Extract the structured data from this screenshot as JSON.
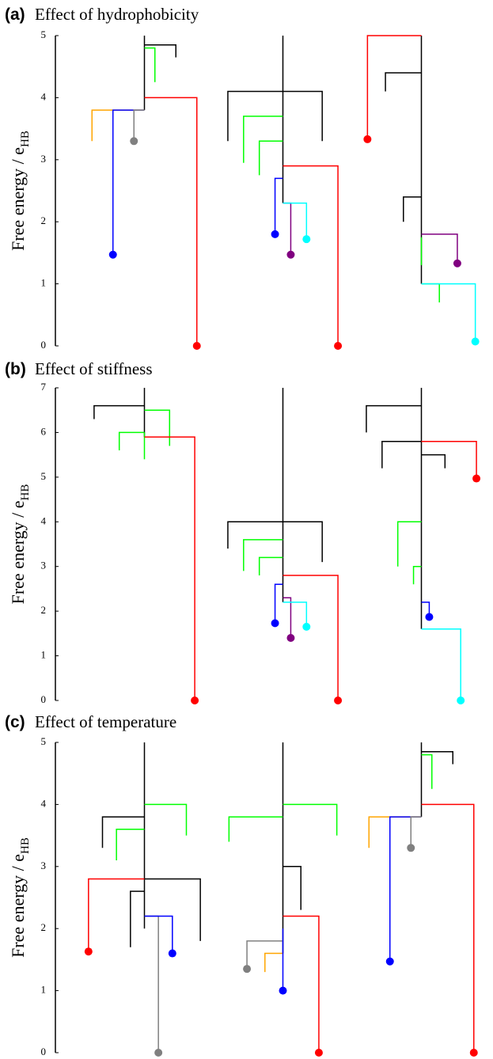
{
  "chart_data": [
    {
      "type": "dendrogram",
      "label": "(a)",
      "title": "Effect of hydrophobicity",
      "ylabel": "Free energy / e",
      "ylabel_sub": "HB",
      "ylim": [
        0,
        5
      ],
      "yticks": [
        0,
        1,
        2,
        3,
        4,
        5
      ],
      "graphs": [
        {
          "leaves": [
            {
              "color": "#ffa500",
              "energy": 3.3,
              "merge": 3.8,
              "dot": false
            },
            {
              "color": "#0000ff",
              "energy": 1.47,
              "merge": 3.8,
              "dot": true
            },
            {
              "color": "#808080",
              "energy": 3.3,
              "merge": 3.8,
              "dot": true
            },
            {
              "color": "#00ff00",
              "energy": 4.25,
              "merge": 4.8,
              "dot": false
            },
            {
              "color": "#000000",
              "energy": 4.65,
              "merge": 4.85,
              "dot": false
            },
            {
              "color": "#ff0000",
              "energy": 0,
              "merge": 4.0,
              "dot": true
            }
          ]
        },
        {
          "leaves": [
            {
              "color": "#000000",
              "energy": 3.3,
              "merge": 4.1,
              "dot": false
            },
            {
              "color": "#00ff00",
              "energy": 2.95,
              "merge": 3.7,
              "dot": false
            },
            {
              "color": "#00ff00",
              "energy": 2.75,
              "merge": 3.3,
              "dot": false
            },
            {
              "color": "#0000ff",
              "energy": 1.8,
              "merge": 2.7,
              "dot": true
            },
            {
              "color": "#800080",
              "energy": 1.47,
              "merge": 2.3,
              "dot": true
            },
            {
              "color": "#00ffff",
              "energy": 1.72,
              "merge": 2.3,
              "dot": true
            },
            {
              "color": "#000000",
              "energy": 3.3,
              "merge": 4.1,
              "dot": false
            },
            {
              "color": "#ff0000",
              "energy": 0,
              "merge": 2.9,
              "dot": true
            }
          ]
        },
        {
          "leaves": [
            {
              "color": "#ff0000",
              "energy": 3.33,
              "merge": 5.0,
              "dot": true
            },
            {
              "color": "#000000",
              "energy": 4.1,
              "merge": 4.4,
              "dot": false
            },
            {
              "color": "#000000",
              "energy": 2.0,
              "merge": 2.4,
              "dot": false
            },
            {
              "color": "#00ff00",
              "energy": 1.3,
              "merge": 1.75,
              "dot": false
            },
            {
              "color": "#00ff00",
              "energy": 0.7,
              "merge": 1.0,
              "dot": false
            },
            {
              "color": "#800080",
              "energy": 1.33,
              "merge": 1.8,
              "dot": true
            },
            {
              "color": "#00ffff",
              "energy": 0.07,
              "merge": 1.0,
              "dot": true
            }
          ]
        }
      ]
    },
    {
      "type": "dendrogram",
      "label": "(b)",
      "title": "Effect of stiffness",
      "ylabel": "Free energy / e",
      "ylabel_sub": "HB",
      "ylim": [
        0,
        7
      ],
      "yticks": [
        0,
        1,
        2,
        3,
        4,
        5,
        6,
        7
      ],
      "graphs": [
        {
          "leaves": [
            {
              "color": "#000000",
              "energy": 6.3,
              "merge": 6.6,
              "dot": false
            },
            {
              "color": "#00ff00",
              "energy": 5.6,
              "merge": 6.0,
              "dot": false
            },
            {
              "color": "#00ff00",
              "energy": 5.4,
              "merge": 6.0,
              "dot": false
            },
            {
              "color": "#00ff00",
              "energy": 5.7,
              "merge": 6.5,
              "dot": false
            },
            {
              "color": "#ff0000",
              "energy": 0,
              "merge": 5.9,
              "dot": true
            }
          ]
        },
        {
          "leaves": [
            {
              "color": "#000000",
              "energy": 3.4,
              "merge": 4.0,
              "dot": false
            },
            {
              "color": "#00ff00",
              "energy": 2.9,
              "merge": 3.6,
              "dot": false
            },
            {
              "color": "#00ff00",
              "energy": 2.8,
              "merge": 3.2,
              "dot": false
            },
            {
              "color": "#0000ff",
              "energy": 1.73,
              "merge": 2.6,
              "dot": true
            },
            {
              "color": "#800080",
              "energy": 1.4,
              "merge": 2.3,
              "dot": true
            },
            {
              "color": "#00ffff",
              "energy": 1.65,
              "merge": 2.2,
              "dot": true
            },
            {
              "color": "#000000",
              "energy": 3.1,
              "merge": 4.0,
              "dot": false
            },
            {
              "color": "#ff0000",
              "energy": 0,
              "merge": 2.8,
              "dot": true
            }
          ]
        },
        {
          "leaves": [
            {
              "color": "#000000",
              "energy": 6.0,
              "merge": 6.6,
              "dot": false
            },
            {
              "color": "#000000",
              "energy": 5.2,
              "merge": 5.8,
              "dot": false
            },
            {
              "color": "#00ff00",
              "energy": 3.0,
              "merge": 4.0,
              "dot": false
            },
            {
              "color": "#00ff00",
              "energy": 2.6,
              "merge": 3.0,
              "dot": false
            },
            {
              "color": "#0000ff",
              "energy": 1.87,
              "merge": 2.2,
              "dot": true
            },
            {
              "color": "#000000",
              "energy": 5.2,
              "merge": 5.5,
              "dot": false
            },
            {
              "color": "#00ffff",
              "energy": 0,
              "merge": 1.6,
              "dot": true
            },
            {
              "color": "#ff0000",
              "energy": 4.97,
              "merge": 5.8,
              "dot": true
            }
          ]
        }
      ]
    },
    {
      "type": "dendrogram",
      "label": "(c)",
      "title": "Effect of temperature",
      "ylabel": "Free energy / e",
      "ylabel_sub": "HB",
      "ylim": [
        0,
        5
      ],
      "yticks": [
        0,
        1,
        2,
        3,
        4,
        5
      ],
      "graphs": [
        {
          "leaves": [
            {
              "color": "#ff0000",
              "energy": 1.63,
              "merge": 2.8,
              "dot": true
            },
            {
              "color": "#000000",
              "energy": 3.3,
              "merge": 3.8,
              "dot": false
            },
            {
              "color": "#00ff00",
              "energy": 3.1,
              "merge": 3.6,
              "dot": false
            },
            {
              "color": "#000000",
              "energy": 1.7,
              "merge": 2.6,
              "dot": false
            },
            {
              "color": "#000000",
              "energy": 2.0,
              "merge": 2.2,
              "dot": false
            },
            {
              "color": "#808080",
              "energy": 0,
              "merge": 2.2,
              "dot": true
            },
            {
              "color": "#0000ff",
              "energy": 1.6,
              "merge": 2.2,
              "dot": true
            },
            {
              "color": "#00ff00",
              "energy": 3.5,
              "merge": 4.0,
              "dot": false
            },
            {
              "color": "#000000",
              "energy": 1.8,
              "merge": 2.8,
              "dot": false
            }
          ]
        },
        {
          "leaves": [
            {
              "color": "#00ff00",
              "energy": 3.4,
              "merge": 3.8,
              "dot": false
            },
            {
              "color": "#808080",
              "energy": 1.35,
              "merge": 1.8,
              "dot": true
            },
            {
              "color": "#ffa500",
              "energy": 1.3,
              "merge": 1.6,
              "dot": false
            },
            {
              "color": "#0000ff",
              "energy": 1.0,
              "merge": 2.0,
              "dot": true
            },
            {
              "color": "#000000",
              "energy": 2.3,
              "merge": 3.0,
              "dot": false
            },
            {
              "color": "#ff0000",
              "energy": 0,
              "merge": 2.2,
              "dot": true
            },
            {
              "color": "#00ff00",
              "energy": 3.5,
              "merge": 4.0,
              "dot": false
            }
          ]
        },
        {
          "leaves": [
            {
              "color": "#ffa500",
              "energy": 3.3,
              "merge": 3.8,
              "dot": false
            },
            {
              "color": "#0000ff",
              "energy": 1.47,
              "merge": 3.8,
              "dot": true
            },
            {
              "color": "#808080",
              "energy": 3.3,
              "merge": 3.8,
              "dot": true
            },
            {
              "color": "#00ff00",
              "energy": 4.25,
              "merge": 4.8,
              "dot": false
            },
            {
              "color": "#000000",
              "energy": 4.65,
              "merge": 4.85,
              "dot": false
            },
            {
              "color": "#ff0000",
              "energy": 0,
              "merge": 4.0,
              "dot": true
            }
          ]
        }
      ]
    }
  ]
}
